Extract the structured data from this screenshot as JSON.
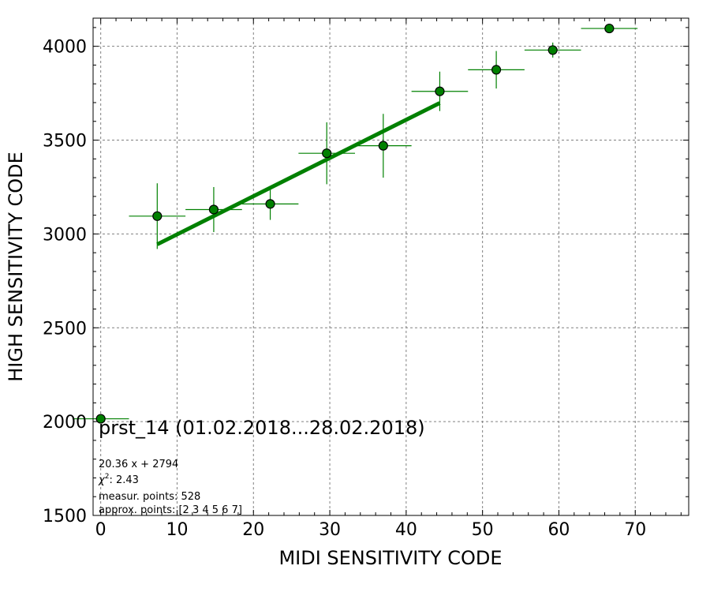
{
  "chart_data": {
    "type": "scatter",
    "xlabel": "MIDI SENSITIVITY CODE",
    "ylabel": "HIGH SENSITIVITY CODE",
    "xlim": [
      -1,
      77
    ],
    "ylim": [
      1500,
      4150
    ],
    "xticks": [
      0,
      10,
      20,
      30,
      40,
      50,
      60,
      70
    ],
    "yticks": [
      1500,
      2000,
      2500,
      3000,
      3500,
      4000
    ],
    "grid": true,
    "colors": {
      "marker": "#008000",
      "marker_edge": "#000000",
      "errorbar": "#008000",
      "fit_line": "#008000",
      "grid": "#808080"
    },
    "series": [
      {
        "points": [
          {
            "x": 0.0,
            "y": 2015,
            "xerr": 3.7,
            "yerr": 0
          },
          {
            "x": 7.4,
            "y": 3095,
            "xerr": 3.7,
            "yerr": 175
          },
          {
            "x": 14.8,
            "y": 3130,
            "xerr": 3.7,
            "yerr": 120
          },
          {
            "x": 22.2,
            "y": 3160,
            "xerr": 3.7,
            "yerr": 85
          },
          {
            "x": 29.6,
            "y": 3430,
            "xerr": 3.7,
            "yerr": 165
          },
          {
            "x": 37.0,
            "y": 3470,
            "xerr": 3.7,
            "yerr": 170
          },
          {
            "x": 44.4,
            "y": 3760,
            "xerr": 3.7,
            "yerr": 105
          },
          {
            "x": 51.8,
            "y": 3875,
            "xerr": 3.7,
            "yerr": 100
          },
          {
            "x": 59.2,
            "y": 3980,
            "xerr": 3.7,
            "yerr": 40
          },
          {
            "x": 66.6,
            "y": 4095,
            "xerr": 3.7,
            "yerr": 0
          }
        ]
      }
    ],
    "fit_line": {
      "slope": 20.36,
      "intercept": 2794,
      "x_range": [
        7.4,
        44.4
      ]
    },
    "annotations": {
      "title": "prst_14 (01.02.2018...28.02.2018)",
      "equation": "20.36 x + 2794",
      "chi2_symbol": "χ",
      "chi2_exp": "2",
      "chi2_value": ": 2.43",
      "measured": "measur. points: 528",
      "approx": "approx. points: [2 3 4 5 6 7]"
    }
  }
}
